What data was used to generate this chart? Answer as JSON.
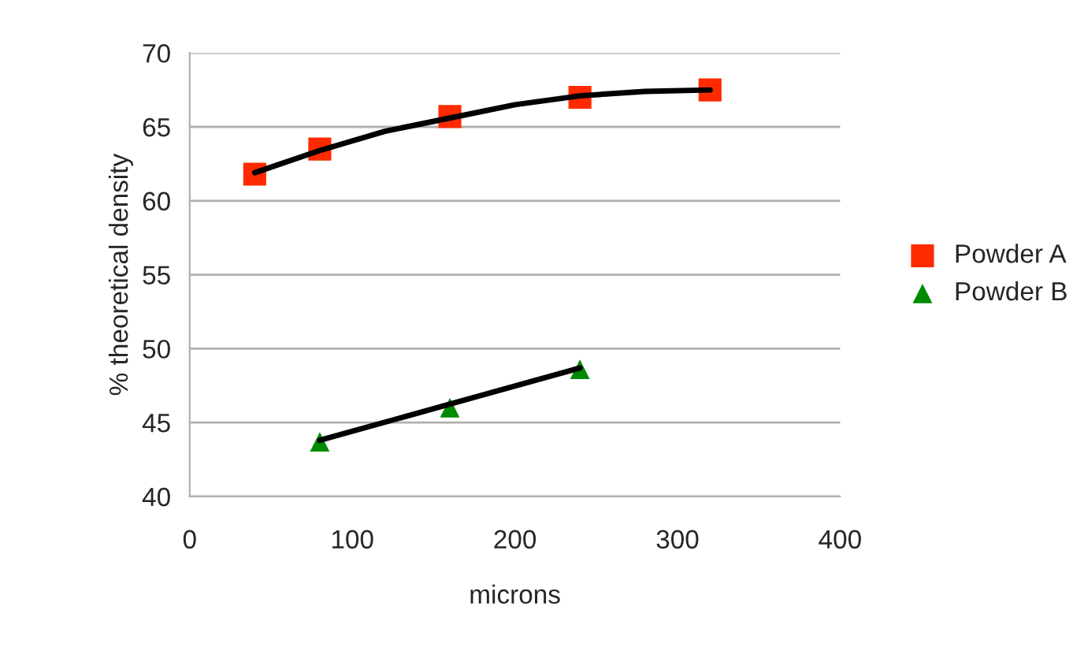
{
  "chart_data": {
    "type": "scatter",
    "xlabel": "microns",
    "ylabel": "% theoretical density",
    "xlim": [
      0,
      400
    ],
    "xticks": [
      0,
      100,
      200,
      300,
      400
    ],
    "ylim": [
      40,
      70
    ],
    "yticks": [
      40,
      45,
      50,
      55,
      60,
      65,
      70
    ],
    "grid": "y",
    "legend": "right",
    "series": [
      {
        "name": "Powder A",
        "color": "#ff2a00",
        "marker": "square",
        "x": [
          40,
          80,
          160,
          240,
          320
        ],
        "values": [
          61.8,
          63.5,
          65.7,
          67.0,
          67.5
        ]
      },
      {
        "name": "Powder B",
        "color": "#008a00",
        "marker": "triangle",
        "x": [
          80,
          160,
          240
        ],
        "values": [
          43.7,
          46.0,
          48.6
        ]
      },
      {
        "type": "line",
        "color": "#000000",
        "line_style": "solid",
        "x": [
          40,
          80,
          120,
          160,
          200,
          240,
          280,
          320
        ],
        "values": [
          61.9,
          63.4,
          64.7,
          65.6,
          66.5,
          67.1,
          67.4,
          67.5
        ]
      },
      {
        "type": "line",
        "color": "#000000",
        "line_style": "solid",
        "x": [
          80,
          240
        ],
        "values": [
          43.8,
          48.7
        ]
      }
    ]
  }
}
